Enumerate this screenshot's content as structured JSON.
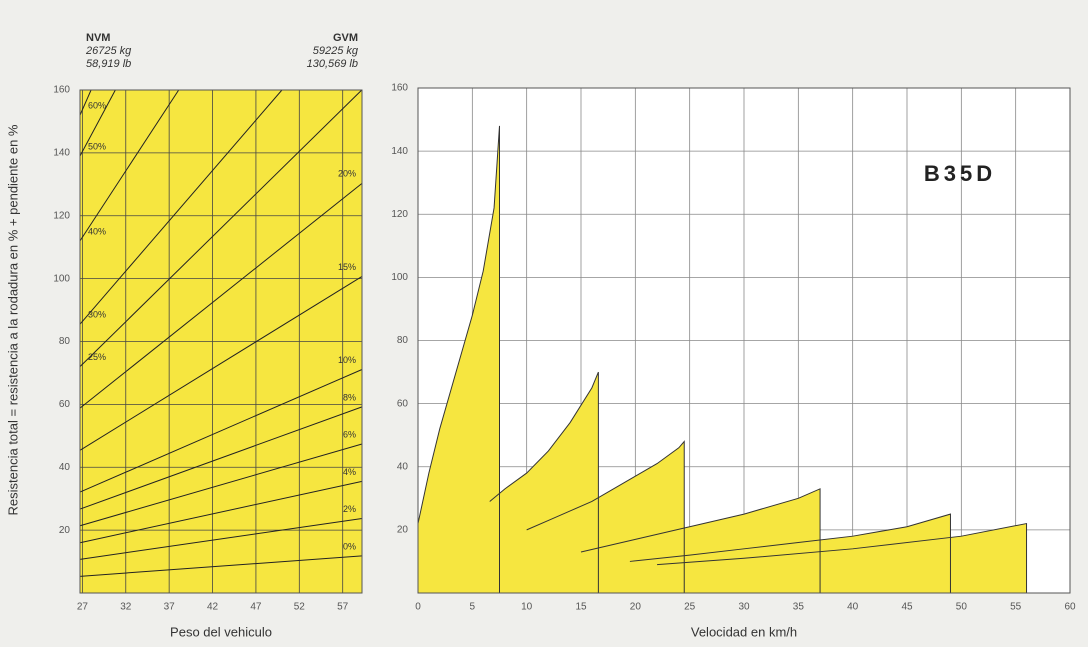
{
  "chart_data": [
    {
      "type": "line",
      "nvm": [
        "NVM",
        "26725 kg",
        "58,919 lb"
      ],
      "gvm": [
        "GVM",
        "59225 kg",
        "130,569 lb"
      ],
      "y_label": "Resistencia total = resistencia a la rodadura en % + pendiente en %",
      "x_label": "Peso del vehiculo",
      "background": "#f6e640",
      "grid": true,
      "xlim": [
        26.725,
        59.225
      ],
      "xticks": [
        27,
        32,
        37,
        42,
        47,
        52,
        57
      ],
      "ylim": [
        0,
        160
      ],
      "yticks": [
        20,
        40,
        60,
        80,
        100,
        120,
        140,
        160
      ],
      "series": [
        {
          "name": "0%",
          "color": "#222",
          "x": [
            26.725,
            59.225
          ],
          "values": [
            5.3,
            11.8
          ]
        },
        {
          "name": "2%",
          "color": "#222",
          "x": [
            26.725,
            59.225
          ],
          "values": [
            10.7,
            23.7
          ]
        },
        {
          "name": "4%",
          "color": "#222",
          "x": [
            26.725,
            59.225
          ],
          "values": [
            16,
            35.5
          ]
        },
        {
          "name": "6%",
          "color": "#222",
          "x": [
            26.725,
            59.225
          ],
          "values": [
            21.4,
            47.4
          ]
        },
        {
          "name": "8%",
          "color": "#222",
          "x": [
            26.725,
            59.225
          ],
          "values": [
            26.7,
            59.2
          ]
        },
        {
          "name": "10%",
          "color": "#222",
          "x": [
            26.725,
            59.225
          ],
          "values": [
            32.1,
            71.1
          ]
        },
        {
          "name": "15%",
          "color": "#222",
          "x": [
            26.725,
            59.225
          ],
          "values": [
            45.4,
            100.7
          ]
        },
        {
          "name": "20%",
          "color": "#222",
          "x": [
            26.725,
            59.225
          ],
          "values": [
            58.8,
            130.3
          ]
        },
        {
          "name": "25%",
          "color": "#222",
          "x": [
            26.725,
            59.2
          ],
          "values": [
            72,
            160
          ]
        },
        {
          "name": "30%",
          "color": "#222",
          "x": [
            26.725,
            50
          ],
          "values": [
            85.5,
            160
          ]
        },
        {
          "name": "40%",
          "color": "#222",
          "x": [
            26.725,
            38.1
          ],
          "values": [
            112,
            160
          ]
        },
        {
          "name": "50%",
          "color": "#222",
          "x": [
            26.725,
            30.8
          ],
          "values": [
            139,
            160
          ]
        },
        {
          "name": "60%",
          "color": "#222",
          "x": [
            26.725,
            28
          ],
          "values": [
            152,
            160
          ]
        }
      ]
    },
    {
      "type": "area",
      "title": "B35D",
      "x_label": "Velocidad en km/h",
      "background": "#ffffff",
      "grid": true,
      "xlim": [
        0,
        60
      ],
      "xticks": [
        0,
        5,
        10,
        15,
        20,
        25,
        30,
        35,
        40,
        45,
        50,
        55,
        60
      ],
      "ylim": [
        0,
        160
      ],
      "yticks": [
        20,
        40,
        60,
        80,
        100,
        120,
        140,
        160
      ],
      "series": [
        {
          "color": "#f6e640",
          "x": [
            0,
            1,
            2,
            3,
            4,
            5,
            6,
            7,
            7.5
          ],
          "values": [
            22,
            38,
            52,
            64,
            76,
            88,
            102,
            122,
            148
          ]
        },
        {
          "color": "#f6e640",
          "x": [
            6.6,
            8,
            10,
            12,
            14,
            16,
            16.6
          ],
          "values": [
            29,
            33,
            38,
            45,
            54,
            65,
            70
          ]
        },
        {
          "color": "#f6e640",
          "x": [
            10,
            12,
            14,
            16,
            18,
            20,
            22,
            24,
            24.5
          ],
          "values": [
            20,
            23,
            26,
            29,
            33,
            37,
            41,
            46,
            48
          ]
        },
        {
          "color": "#f6e640",
          "x": [
            15,
            20,
            25,
            30,
            35,
            37
          ],
          "values": [
            13,
            17,
            21,
            25,
            30,
            33
          ]
        },
        {
          "color": "#f6e640",
          "x": [
            19.5,
            25,
            30,
            35,
            40,
            45,
            49
          ],
          "values": [
            10,
            12,
            14,
            16,
            18,
            21,
            25
          ]
        },
        {
          "color": "#f6e640",
          "x": [
            22,
            30,
            40,
            50,
            56
          ],
          "values": [
            9,
            11,
            14,
            18,
            22
          ]
        }
      ]
    }
  ]
}
